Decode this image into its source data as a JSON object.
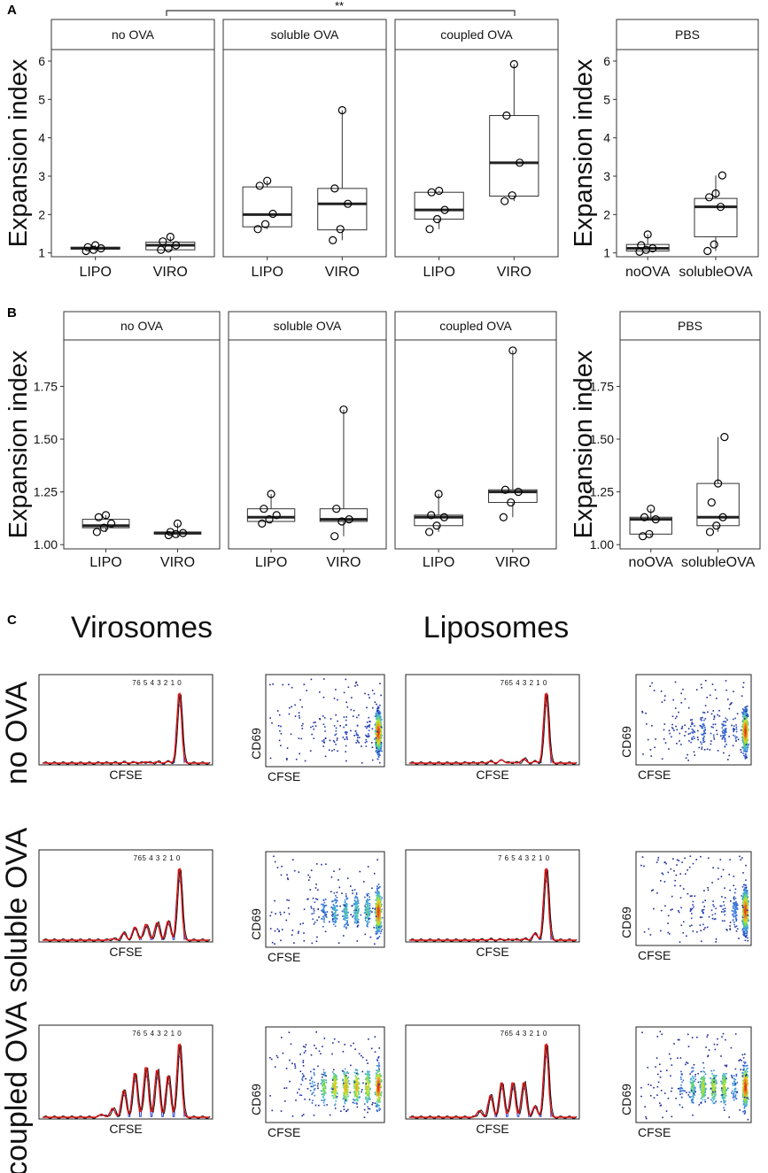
{
  "panel_labels": {
    "a": "A",
    "b": "B",
    "c": "C"
  },
  "significance": {
    "label": "**"
  },
  "y_axis_title": "Expansion index",
  "chart_data": [
    {
      "id": "panel-a",
      "type": "box",
      "ylabel": "Expansion index",
      "ylim": [
        0.9,
        6.3
      ],
      "yticks": [
        1,
        2,
        3,
        4,
        5,
        6
      ],
      "ytick_labels": [
        "1",
        "2",
        "3",
        "4",
        "5",
        "6"
      ],
      "comparison": {
        "from_facet": "no OVA",
        "to_facet": "coupled OVA",
        "label": "**"
      },
      "facets": [
        {
          "label": "no OVA",
          "categories": [
            {
              "name": "LIPO",
              "q1": 1.1,
              "median": 1.12,
              "q3": 1.15,
              "wlow": 1.05,
              "whigh": 1.2,
              "points": [
                1.05,
                1.08,
                1.12,
                1.15,
                1.2
              ]
            },
            {
              "name": "VIRO",
              "q1": 1.08,
              "median": 1.2,
              "q3": 1.28,
              "wlow": 1.05,
              "whigh": 1.42,
              "points": [
                1.08,
                1.12,
                1.2,
                1.3,
                1.42
              ]
            }
          ]
        },
        {
          "label": "soluble OVA",
          "categories": [
            {
              "name": "LIPO",
              "q1": 1.68,
              "median": 2.0,
              "q3": 2.72,
              "wlow": 1.62,
              "whigh": 2.88,
              "points": [
                1.62,
                1.75,
                2.02,
                2.75,
                2.88
              ]
            },
            {
              "name": "VIRO",
              "q1": 1.6,
              "median": 2.28,
              "q3": 2.68,
              "wlow": 1.33,
              "whigh": 4.72,
              "points": [
                1.33,
                1.62,
                2.28,
                2.68,
                4.72
              ]
            }
          ]
        },
        {
          "label": "coupled OVA",
          "categories": [
            {
              "name": "LIPO",
              "q1": 1.88,
              "median": 2.12,
              "q3": 2.58,
              "wlow": 1.62,
              "whigh": 2.62,
              "points": [
                1.62,
                1.88,
                2.12,
                2.58,
                2.62
              ]
            },
            {
              "name": "VIRO",
              "q1": 2.48,
              "median": 3.35,
              "q3": 4.58,
              "wlow": 2.35,
              "whigh": 5.92,
              "points": [
                2.35,
                2.5,
                3.35,
                4.58,
                5.92
              ]
            }
          ]
        }
      ],
      "side": {
        "label": "PBS",
        "categories": [
          {
            "name": "noOVA",
            "q1": 1.05,
            "median": 1.12,
            "q3": 1.22,
            "wlow": 1.03,
            "whigh": 1.48,
            "points": [
              1.03,
              1.08,
              1.12,
              1.2,
              1.48
            ]
          },
          {
            "name": "solubleOVA",
            "q1": 1.42,
            "median": 2.2,
            "q3": 2.42,
            "wlow": 1.05,
            "whigh": 3.02,
            "points": [
              1.05,
              1.22,
              2.2,
              2.45,
              2.55,
              3.02
            ]
          }
        ]
      }
    },
    {
      "id": "panel-b",
      "type": "box",
      "ylabel": "Expansion index",
      "ylim": [
        0.98,
        1.97
      ],
      "yticks": [
        1.0,
        1.25,
        1.5,
        1.75
      ],
      "ytick_labels": [
        "1.00",
        "1.25",
        "1.50",
        "1.75"
      ],
      "facets": [
        {
          "label": "no OVA",
          "categories": [
            {
              "name": "LIPO",
              "q1": 1.08,
              "median": 1.09,
              "q3": 1.12,
              "wlow": 1.06,
              "whigh": 1.14,
              "points": [
                1.06,
                1.08,
                1.1,
                1.13,
                1.14
              ]
            },
            {
              "name": "VIRO",
              "q1": 1.05,
              "median": 1.055,
              "q3": 1.06,
              "wlow": 1.04,
              "whigh": 1.1,
              "points": [
                1.045,
                1.05,
                1.055,
                1.06,
                1.1
              ]
            }
          ]
        },
        {
          "label": "soluble OVA",
          "categories": [
            {
              "name": "LIPO",
              "q1": 1.11,
              "median": 1.13,
              "q3": 1.17,
              "wlow": 1.1,
              "whigh": 1.24,
              "points": [
                1.1,
                1.12,
                1.14,
                1.17,
                1.24
              ]
            },
            {
              "name": "VIRO",
              "q1": 1.11,
              "median": 1.12,
              "q3": 1.17,
              "wlow": 1.04,
              "whigh": 1.64,
              "points": [
                1.04,
                1.11,
                1.12,
                1.17,
                1.64
              ]
            }
          ]
        },
        {
          "label": "coupled OVA",
          "categories": [
            {
              "name": "LIPO",
              "q1": 1.09,
              "median": 1.13,
              "q3": 1.14,
              "wlow": 1.06,
              "whigh": 1.24,
              "points": [
                1.06,
                1.09,
                1.13,
                1.14,
                1.24
              ]
            },
            {
              "name": "VIRO",
              "q1": 1.2,
              "median": 1.25,
              "q3": 1.26,
              "wlow": 1.13,
              "whigh": 1.92,
              "points": [
                1.13,
                1.2,
                1.25,
                1.26,
                1.92
              ]
            }
          ]
        }
      ],
      "side": {
        "label": "PBS",
        "categories": [
          {
            "name": "noOVA",
            "q1": 1.05,
            "median": 1.12,
            "q3": 1.13,
            "wlow": 1.04,
            "whigh": 1.17,
            "points": [
              1.04,
              1.05,
              1.12,
              1.13,
              1.17
            ]
          },
          {
            "name": "solubleOVA",
            "q1": 1.09,
            "median": 1.13,
            "q3": 1.29,
            "wlow": 1.06,
            "whigh": 1.51,
            "points": [
              1.06,
              1.09,
              1.13,
              1.2,
              1.29,
              1.51
            ]
          }
        ]
      }
    },
    {
      "id": "panel-c",
      "type": "flow-cytometry",
      "columns": [
        {
          "title": "Virosomes"
        },
        {
          "title": "Liposomes"
        }
      ],
      "rows": [
        {
          "label": "no OVA"
        },
        {
          "label": "soluble OVA"
        },
        {
          "label": "coupled OVA"
        }
      ],
      "histogram_xlabel": "CFSE",
      "scatter_xlabel": "CFSE",
      "scatter_ylabel": "CD69",
      "generation_labels": [
        "7",
        "6",
        "5",
        "4",
        "3",
        "2",
        "1",
        "0"
      ],
      "generation_label_rows": {
        "virosomes": [
          "76 5 4 3 2 1 0",
          "765 4 3 2 1 0",
          "76 5 4 3 2 1 0"
        ],
        "liposomes": [
          "765 4 3 2 1 0",
          "7 6 5 4 3 2 1 0",
          "765 4 3 2 1 0"
        ]
      },
      "generation_fractions": {
        "virosomes": [
          [
            0.005,
            0.005,
            0.01,
            0.01,
            0.015,
            0.015,
            0.02,
            0.92
          ],
          [
            0.0,
            0.01,
            0.05,
            0.09,
            0.11,
            0.12,
            0.13,
            0.5
          ],
          [
            0.01,
            0.03,
            0.09,
            0.15,
            0.17,
            0.16,
            0.14,
            0.25
          ]
        ],
        "liposomes": [
          [
            0.005,
            0.005,
            0.02,
            0.04,
            0.01,
            0.05,
            0.02,
            0.85
          ],
          [
            0.0,
            0.005,
            0.01,
            0.01,
            0.01,
            0.015,
            0.08,
            0.87
          ],
          [
            0.0,
            0.03,
            0.1,
            0.16,
            0.16,
            0.16,
            0.05,
            0.34
          ]
        ]
      }
    }
  ]
}
